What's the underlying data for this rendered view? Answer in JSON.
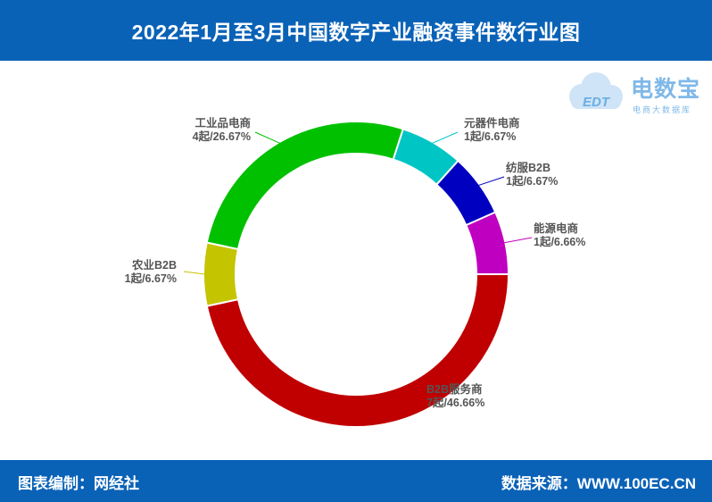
{
  "header": {
    "title": "2022年1月至3月中国数字产业融资事件数行业图"
  },
  "footer": {
    "left": "图表编制：网经社",
    "right": "数据来源：WWW.100EC.CN"
  },
  "logo": {
    "brand": "电数宝",
    "slogan": "电商大数据库",
    "mark": "EDT"
  },
  "chart_data": {
    "type": "pie",
    "style": "donut",
    "title": "2022年1月至3月中国数字产业融资事件数行业图",
    "slices": [
      {
        "name": "B2B服务商",
        "count": 7,
        "percent": 46.66,
        "count_label": "7起/46.66%",
        "color": "#c00000"
      },
      {
        "name": "农业B2B",
        "count": 1,
        "percent": 6.67,
        "count_label": "1起/6.67%",
        "color": "#c5c400"
      },
      {
        "name": "工业品电商",
        "count": 4,
        "percent": 26.67,
        "count_label": "4起/26.67%",
        "color": "#00c000"
      },
      {
        "name": "元器件电商",
        "count": 1,
        "percent": 6.67,
        "count_label": "1起/6.67%",
        "color": "#00c5c5"
      },
      {
        "name": "纺服B2B",
        "count": 1,
        "percent": 6.67,
        "count_label": "1起/6.67%",
        "color": "#0000c0"
      },
      {
        "name": "能源电商",
        "count": 1,
        "percent": 6.66,
        "count_label": "1起/6.66%",
        "color": "#c000c0"
      }
    ]
  }
}
